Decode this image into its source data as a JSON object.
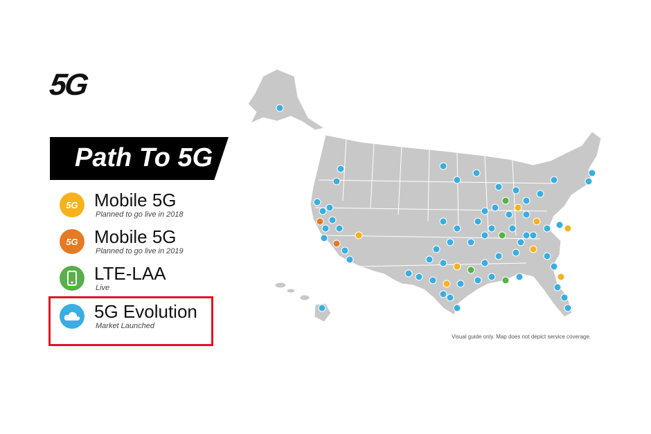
{
  "logo": "5G",
  "banner": "Path To 5G",
  "legend": [
    {
      "title": "Mobile 5G",
      "subtitle": "Planned to go live in 2018",
      "icon_label": "5G",
      "color": "#f5b21c"
    },
    {
      "title": "Mobile 5G",
      "subtitle": "Planned to go live in 2019",
      "icon_label": "5G",
      "color": "#e47a24"
    },
    {
      "title": "LTE-LAA",
      "subtitle": "Live",
      "icon_label": "",
      "color": "#58b048"
    },
    {
      "title": "5G Evolution",
      "subtitle": "Market Launched",
      "icon_label": "",
      "color": "#3aaee0"
    }
  ],
  "disclaimer": "Visual guide only. Map does not depict service coverage.",
  "colors": {
    "map_fill": "#c8c8c8",
    "map_stroke": "#ffffff",
    "highlight": "#e0141e"
  }
}
